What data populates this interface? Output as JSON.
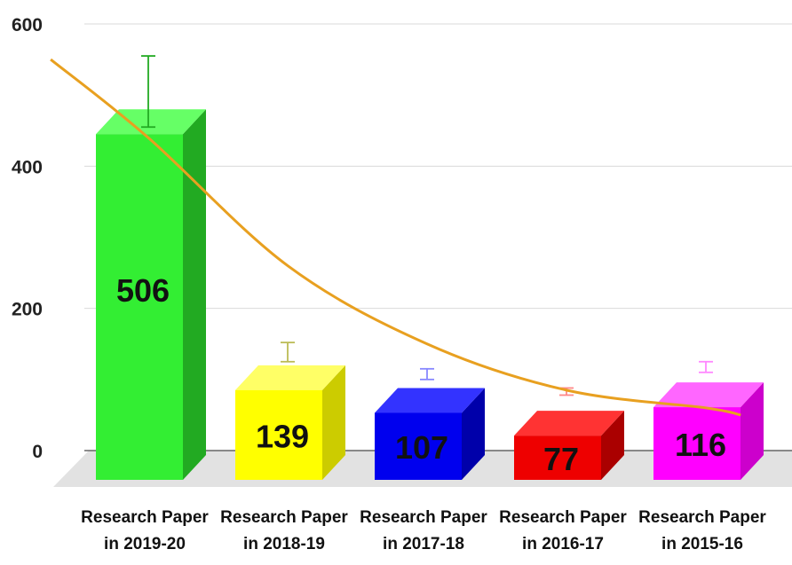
{
  "chart_data": {
    "type": "bar",
    "title": "",
    "xlabel": "",
    "ylabel": "",
    "ylim": [
      0,
      600
    ],
    "yticks": [
      0,
      200,
      400,
      600
    ],
    "grid": true,
    "legend": "none",
    "categories": [
      [
        "Research Paper",
        "in 2019-20"
      ],
      [
        "Research Paper",
        "in 2018-19"
      ],
      [
        "Research Paper",
        "in 2017-18"
      ],
      [
        "Research Paper",
        "in 2016-17"
      ],
      [
        "Research Paper",
        "in 2015-16"
      ]
    ],
    "values": [
      506,
      139,
      107,
      77,
      116
    ],
    "bar_top_values": [
      460,
      100,
      68,
      36,
      76
    ],
    "error_bars": [
      [
        455,
        555
      ],
      [
        125,
        152
      ],
      [
        100,
        115
      ],
      [
        78,
        88
      ],
      [
        110,
        125
      ]
    ],
    "bar_colors": [
      "#33ee33",
      "#ffff00",
      "#0000ee",
      "#ee0000",
      "#ff00ff"
    ],
    "bar_side_colors": [
      "#22aa22",
      "#cccc00",
      "#0000aa",
      "#aa0000",
      "#cc00cc"
    ],
    "bar_top_colors": [
      "#66ff66",
      "#ffff66",
      "#3333ff",
      "#ff3333",
      "#ff66ff"
    ],
    "error_bar_colors": [
      "#22aa22",
      "#bbbb55",
      "#8888ff",
      "#ff8888",
      "#ff88ff"
    ],
    "trendline": {
      "type": "exponential",
      "color": "#e8a020",
      "points": [
        [
          -0.7,
          550
        ],
        [
          0,
          440
        ],
        [
          1,
          260
        ],
        [
          2,
          150
        ],
        [
          3,
          85
        ],
        [
          4,
          60
        ],
        [
          4.25,
          50
        ]
      ]
    }
  }
}
